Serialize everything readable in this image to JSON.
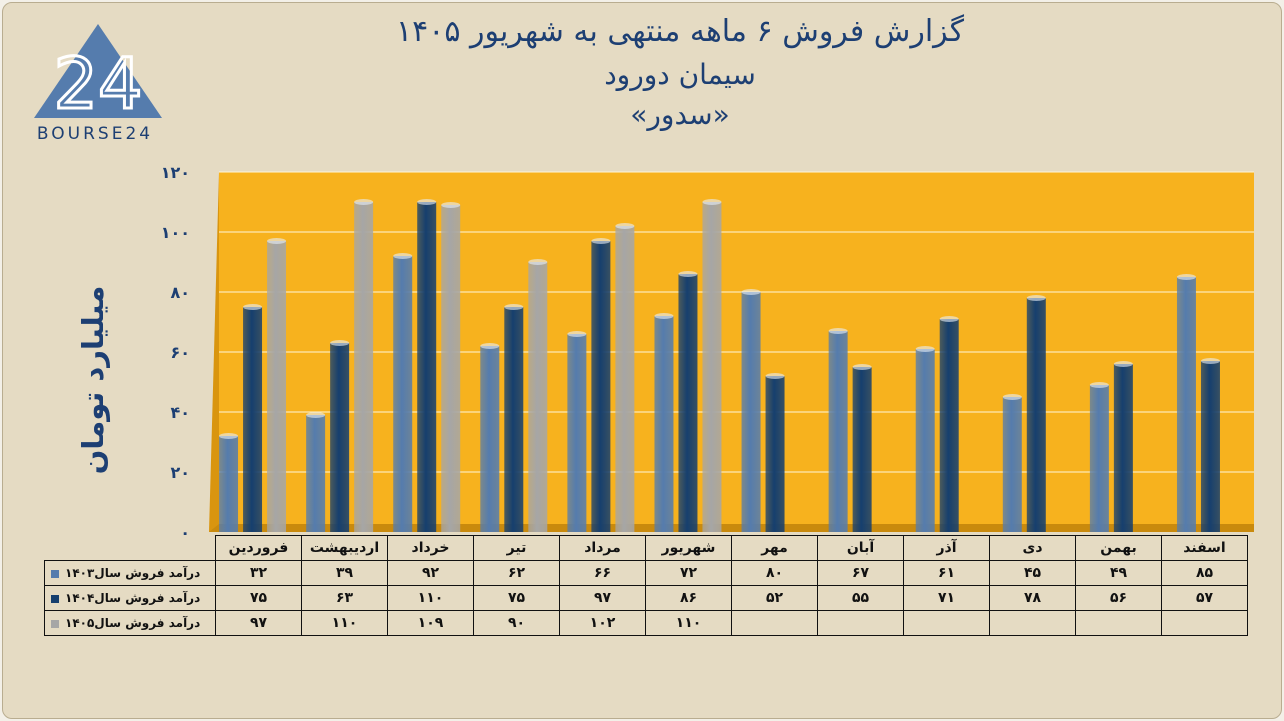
{
  "header": {
    "title_line1": "گزارش  فروش ۶ ماهه منتهی به شهریور ۱۴۰۵",
    "title_line2": "سیمان دورود",
    "title_line3": "«سدور»"
  },
  "logo": {
    "text": "BOURSE24",
    "glyph": "24"
  },
  "colors": {
    "s1403": "#557cad",
    "s1404": "#163f6e",
    "s1405": "#a6a6a6",
    "plot_bg": "#f7b21e",
    "text": "#1d3f73"
  },
  "chart_data": {
    "type": "bar",
    "ylabel": "میلیارد تومان",
    "ylim": [
      0,
      120
    ],
    "yticks": [
      "۰",
      "۲۰",
      "۴۰",
      "۶۰",
      "۸۰",
      "۱۰۰",
      "۱۲۰"
    ],
    "categories": [
      "فروردین",
      "اردیبهشت",
      "خرداد",
      "تیر",
      "مرداد",
      "شهریور",
      "مهر",
      "آبان",
      "آذر",
      "دی",
      "بهمن",
      "اسفند"
    ],
    "series": [
      {
        "name": "درآمد فروش سال۱۴۰۳",
        "values": [
          32,
          39,
          92,
          62,
          66,
          72,
          80,
          67,
          61,
          45,
          49,
          85
        ],
        "labels": [
          "۳۲",
          "۳۹",
          "۹۲",
          "۶۲",
          "۶۶",
          "۷۲",
          "۸۰",
          "۶۷",
          "۶۱",
          "۴۵",
          "۴۹",
          "۸۵"
        ]
      },
      {
        "name": "درآمد فروش سال۱۴۰۴",
        "values": [
          75,
          63,
          110,
          75,
          97,
          86,
          52,
          55,
          71,
          78,
          56,
          57
        ],
        "labels": [
          "۷۵",
          "۶۳",
          "۱۱۰",
          "۷۵",
          "۹۷",
          "۸۶",
          "۵۲",
          "۵۵",
          "۷۱",
          "۷۸",
          "۵۶",
          "۵۷"
        ]
      },
      {
        "name": "درآمد فروش سال۱۴۰۵",
        "values": [
          97,
          110,
          109,
          90,
          102,
          110,
          null,
          null,
          null,
          null,
          null,
          null
        ],
        "labels": [
          "۹۷",
          "۱۱۰",
          "۱۰۹",
          "۹۰",
          "۱۰۲",
          "۱۱۰",
          "",
          "",
          "",
          "",
          "",
          ""
        ]
      }
    ],
    "grid": true,
    "legend": "table-left"
  }
}
